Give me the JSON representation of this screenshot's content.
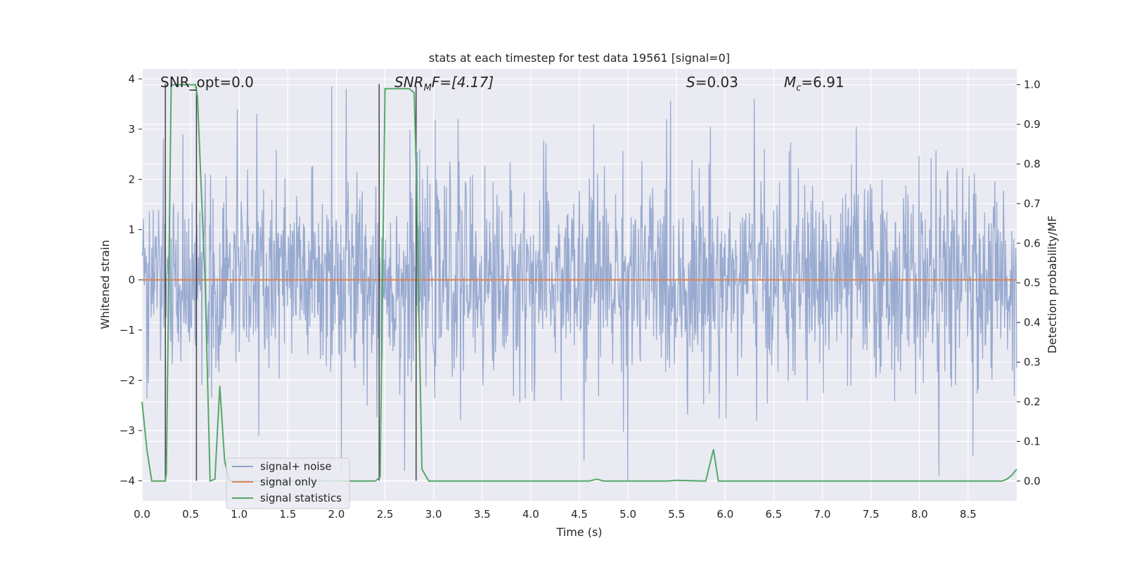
{
  "chart_data": {
    "type": "line",
    "title": "stats at each timestep for test data 19561 [signal=0]",
    "xlabel": "Time (s)",
    "ylabel_left": "Whitened strain",
    "ylabel_right": "Detection probability/MF",
    "xlim": [
      0.0,
      9.0
    ],
    "ylim_left": [
      -4.4,
      4.2
    ],
    "ylim_right": [
      -0.05,
      1.04
    ],
    "x_ticks": [
      "0.0",
      "0.5",
      "1.0",
      "1.5",
      "2.0",
      "2.5",
      "3.0",
      "3.5",
      "4.0",
      "4.5",
      "5.0",
      "5.5",
      "6.0",
      "6.5",
      "7.0",
      "7.5",
      "8.0",
      "8.5"
    ],
    "y_ticks_left": [
      "4",
      "3",
      "2",
      "1",
      "0",
      "−1",
      "−2",
      "−3",
      "−4"
    ],
    "y_ticks_right": [
      "1.0",
      "0.9",
      "0.8",
      "0.7",
      "0.6",
      "0.5",
      "0.4",
      "0.3",
      "0.2",
      "0.1",
      "0.0"
    ],
    "grid": true,
    "legend_position": "lower-left",
    "annotations": {
      "snr_opt": "SNR_opt=0.0",
      "snr_mf_label": "SNR",
      "snr_mf_sub": "M",
      "snr_mf_rest": "F=[4.17]",
      "s_label": "S",
      "s_value": "=0.03",
      "mc_label": "M",
      "mc_sub": "c",
      "mc_value": "=6.91"
    },
    "series": [
      {
        "name": "signal+ noise",
        "color": "#8fa3cc",
        "kind": "noise",
        "n_samples": 1800,
        "envelope": 2.3,
        "notable_peaks": [
          [
            0.22,
            2.8
          ],
          [
            0.42,
            2.9
          ],
          [
            0.98,
            3.4
          ],
          [
            1.95,
            3.85
          ],
          [
            2.1,
            3.8
          ],
          [
            3.25,
            3.2
          ],
          [
            4.65,
            3.1
          ],
          [
            5.4,
            3.2
          ],
          [
            5.85,
            3.05
          ],
          [
            6.3,
            3.6
          ],
          [
            7.35,
            3.05
          ],
          [
            8.2,
            -3.9
          ],
          [
            2.05,
            -3.8
          ],
          [
            5.0,
            -4.0
          ],
          [
            4.55,
            -3.6
          ],
          [
            8.55,
            -3.5
          ],
          [
            1.2,
            -3.1
          ],
          [
            2.7,
            -3.8
          ]
        ]
      },
      {
        "name": "signal only",
        "color": "#dd8452",
        "kind": "flat",
        "x": [
          0.0,
          9.0
        ],
        "y": [
          0.0,
          0.0
        ]
      },
      {
        "name": "signal statistics",
        "color": "#55a868",
        "kind": "prob",
        "x": [
          0.0,
          0.05,
          0.1,
          0.2,
          0.24,
          0.25,
          0.3,
          0.55,
          0.57,
          0.65,
          0.7,
          0.75,
          0.8,
          0.85,
          0.9,
          2.35,
          2.4,
          2.45,
          2.5,
          2.75,
          2.8,
          2.82,
          2.88,
          2.95,
          4.6,
          4.68,
          4.75,
          5.4,
          5.5,
          5.8,
          5.88,
          5.93,
          6.0,
          8.85,
          8.9,
          8.95,
          9.0
        ],
        "y": [
          0.2,
          0.08,
          0.0,
          0.0,
          0.0,
          0.02,
          1.0,
          1.0,
          0.97,
          0.5,
          0.0,
          0.005,
          0.24,
          0.05,
          0.0,
          0.0,
          0.0,
          0.01,
          0.99,
          0.99,
          0.98,
          0.8,
          0.03,
          0.0,
          0.0,
          0.005,
          0.0,
          0.0,
          0.002,
          0.0,
          0.08,
          0.0,
          0.0,
          0.0,
          0.005,
          0.015,
          0.03
        ]
      }
    ],
    "markers": [
      {
        "x": 0.24,
        "y_range": [
          -4.0,
          3.9
        ],
        "color": "#444444"
      },
      {
        "x": 0.56,
        "y_range": [
          -4.0,
          3.85
        ],
        "color": "#444444"
      },
      {
        "x": 2.44,
        "y_range": [
          -4.0,
          3.9
        ],
        "color": "#444444"
      },
      {
        "x": 2.82,
        "y_range": [
          -4.0,
          3.85
        ],
        "color": "#444444"
      }
    ]
  }
}
